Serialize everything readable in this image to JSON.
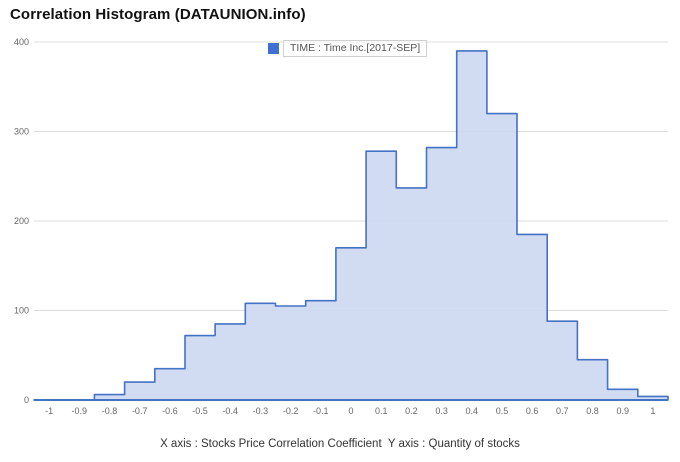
{
  "title": "Correlation Histogram (DATAUNION.info)",
  "legend": {
    "label": "TIME : Time Inc.[2017-SEP]",
    "color": "#3f6fd1"
  },
  "footer": "X axis : Stocks Price Correlation Coefficient  Y axis : Quantity of stocks",
  "chart_data": {
    "type": "area",
    "style": "step-center-histogram",
    "title": "Correlation Histogram (DATAUNION.info)",
    "series_name": "TIME : Time Inc.[2017-SEP]",
    "xlabel": "Stocks Price Correlation Coefficient",
    "ylabel": "Quantity of stocks",
    "x": [
      -1,
      -0.9,
      -0.8,
      -0.7,
      -0.6,
      -0.5,
      -0.4,
      -0.3,
      -0.2,
      -0.1,
      0,
      0.1,
      0.2,
      0.3,
      0.4,
      0.5,
      0.6,
      0.7,
      0.8,
      0.9,
      1
    ],
    "values": [
      0,
      0,
      6,
      20,
      35,
      72,
      85,
      108,
      105,
      111,
      170,
      278,
      237,
      282,
      390,
      320,
      185,
      88,
      45,
      12,
      4
    ],
    "xtick_labels": [
      "-1",
      "-0.9",
      "-0.8",
      "-0.7",
      "-0.6",
      "-0.5",
      "-0.4",
      "-0.3",
      "-0.2",
      "-0.1",
      "0",
      "0.1",
      "0.2",
      "0.3",
      "0.4",
      "0.5",
      "0.6",
      "0.7",
      "0.8",
      "0.9",
      "1"
    ],
    "yticks": [
      0,
      100,
      200,
      300,
      400
    ],
    "xlim": [
      -1.05,
      1.05
    ],
    "ylim": [
      0,
      400
    ],
    "bin_width": 0.1,
    "grid": "horizontal",
    "legend_position": "top-center",
    "colors": {
      "fill": "#ccd7ef",
      "line": "#4472c4",
      "axis": "#4472c4",
      "grid": "#dedede",
      "tick": "#666666"
    }
  }
}
